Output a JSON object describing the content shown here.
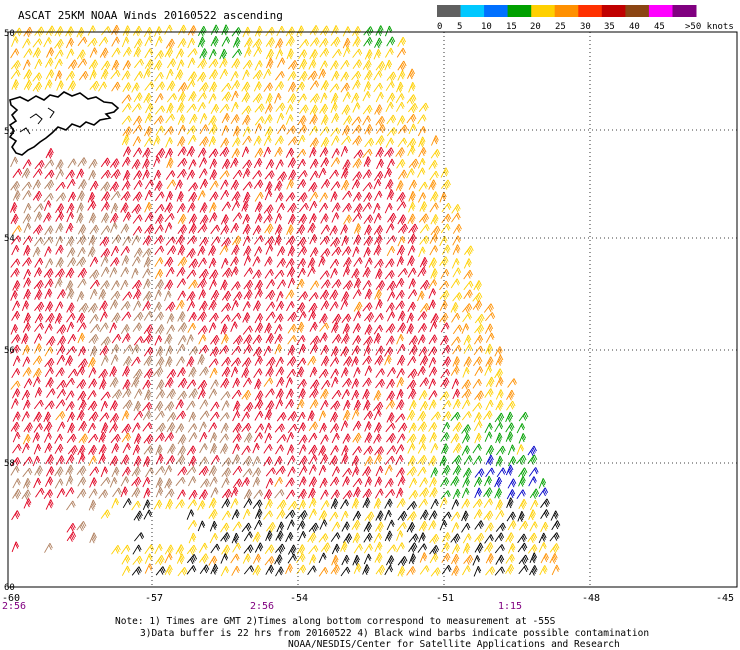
{
  "title": "ASCAT 25KM NOAA Winds 20160522 ascending",
  "legend": {
    "labels": [
      "0",
      "5",
      "10",
      "15",
      "20",
      "25",
      "30",
      "35",
      "40",
      "45",
      ">50 knots"
    ],
    "colors": [
      "#606060",
      "#00c8ff",
      "#0070ff",
      "#00a000",
      "#ffd000",
      "#ff9000",
      "#ff3000",
      "#c00000",
      "#8b4513",
      "#ff00ff",
      "#800080"
    ]
  },
  "lon_labels": [
    "-60",
    "-57",
    "-54",
    "-51",
    "-48",
    "-45"
  ],
  "lat_labels": [
    "50",
    "52",
    "54",
    "56",
    "58",
    "60"
  ],
  "time_labels": [
    "2:56",
    "2:56",
    "1:15"
  ],
  "notes": [
    "Note: 1) Times are GMT 2)Times along bottom correspond to measurement at -55S",
    "3)Data buffer is 22 hrs from 20160522 4) Black wind barbs indicate possible contamination",
    "NOAA/NESDIS/Center for Satellite Applications and Research"
  ],
  "wind_colors": {
    "green": "#00a000",
    "yellow": "#ffd000",
    "orange": "#ff9000",
    "red": "#e00020",
    "brown": "#b08060",
    "blue": "#0000c8",
    "black": "#000000"
  }
}
